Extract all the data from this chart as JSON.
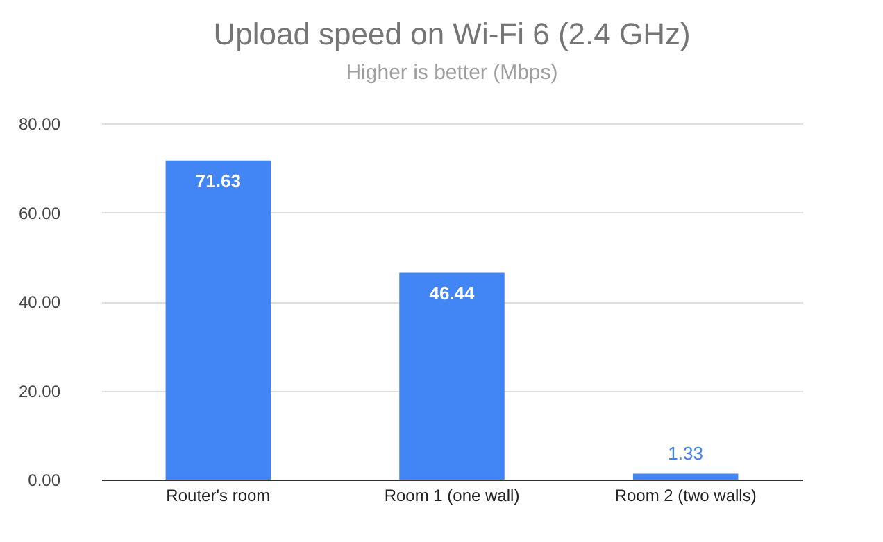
{
  "chart_data": {
    "type": "bar",
    "title": "Upload speed on Wi-Fi 6 (2.4 GHz)",
    "subtitle": "Higher is better (Mbps)",
    "categories": [
      "Router's room",
      "Room 1 (one wall)",
      "Room 2 (two walls)"
    ],
    "values": [
      71.63,
      46.44,
      1.33
    ],
    "color": "#4285f4",
    "ylim": [
      0,
      80
    ],
    "yticks": [
      {
        "value": 0,
        "label": "0.00"
      },
      {
        "value": 20,
        "label": "20.00"
      },
      {
        "value": 40,
        "label": "40.00"
      },
      {
        "value": 60,
        "label": "60.00"
      },
      {
        "value": 80,
        "label": "80.00"
      }
    ],
    "grid": "y",
    "data_labels": true
  }
}
